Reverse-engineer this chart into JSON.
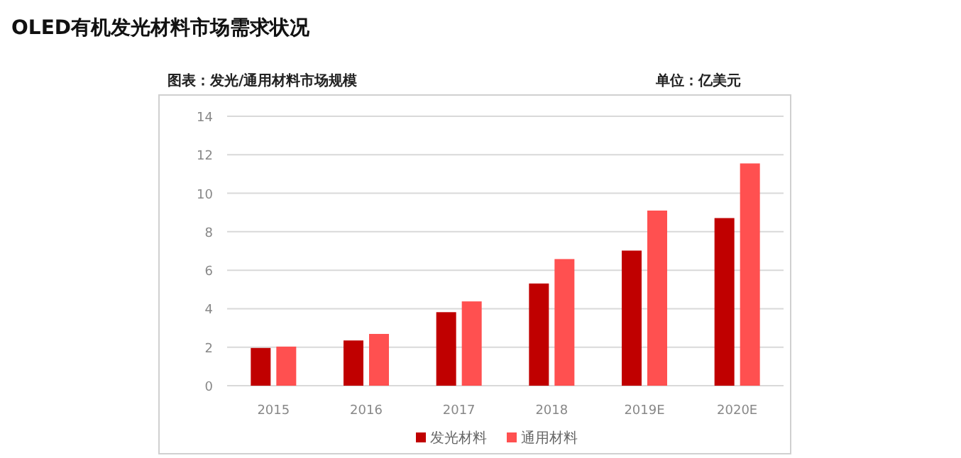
{
  "chart_data": {
    "type": "bar",
    "title": "OLED有机发光材料市场需求状况",
    "annotations": [
      "图表：发光/通用材料市场规模",
      "单位：亿美元"
    ],
    "categories": [
      "2015",
      "2016",
      "2017",
      "2018",
      "2019E",
      "2020E"
    ],
    "series": [
      {
        "name": "发光材料",
        "color": "#c00000",
        "values": [
          1.96,
          2.35,
          3.82,
          5.31,
          7.02,
          8.71
        ]
      },
      {
        "name": "通用材料",
        "color": "#ff5050",
        "values": [
          2.03,
          2.69,
          4.38,
          6.58,
          9.1,
          11.55
        ]
      }
    ],
    "ylim": [
      0,
      14
    ],
    "yticks": [
      0,
      2,
      4,
      6,
      8,
      10,
      12,
      14
    ],
    "grid": "y",
    "legend": "bottom"
  }
}
